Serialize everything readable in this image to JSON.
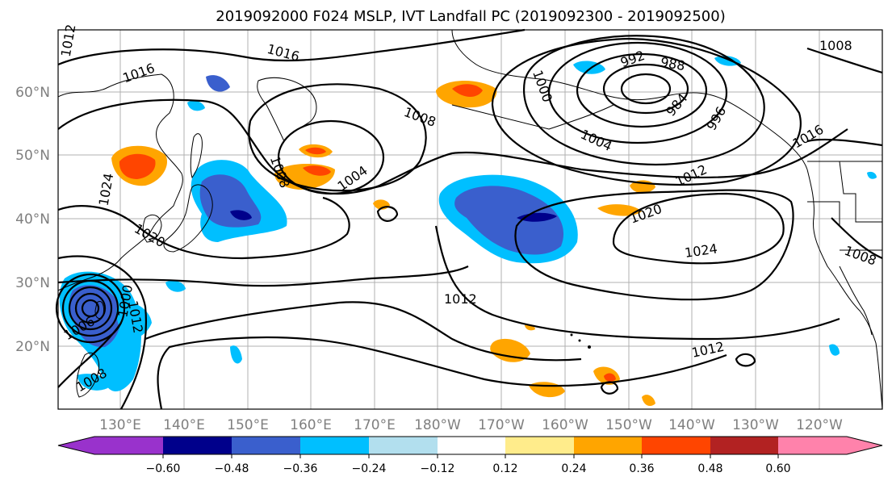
{
  "title": "2019092000 F024 MSLP, IVT Landfall PC (2019092300 - 2019092500)",
  "lat_labels": [
    "60°N",
    "50°N",
    "40°N",
    "30°N",
    "20°N"
  ],
  "lon_labels": [
    "130°E",
    "140°E",
    "150°E",
    "160°E",
    "170°E",
    "180°W",
    "170°W",
    "160°W",
    "150°W",
    "140°W",
    "130°W",
    "120°W"
  ],
  "colorbar": {
    "ticks": [
      "−0.60",
      "−0.48",
      "−0.36",
      "−0.24",
      "−0.12",
      "0.12",
      "0.24",
      "0.36",
      "0.48",
      "0.60"
    ],
    "colors": [
      "#9932cc",
      "#00008b",
      "#3a5fcd",
      "#00bfff",
      "#b2dfee",
      "#ffffff",
      "#ffec8b",
      "#ffa500",
      "#ff4500",
      "#b22222",
      "#ff82ab"
    ]
  },
  "contour_labels": [
    "1016",
    "1016",
    "1012",
    "1024",
    "1020",
    "1008",
    "1004",
    "1000",
    "1008",
    "992",
    "988",
    "984",
    "996",
    "1004",
    "1012",
    "1020",
    "1024",
    "1012",
    "1012",
    "1016",
    "1008",
    "1008",
    "1006",
    "1000",
    "1008",
    "1012"
  ],
  "ivt_colors": {
    "neg_light": "#00bfff",
    "neg_mid": "#3a5fcd",
    "neg_dark": "#00008b",
    "pos_light": "#ffa500",
    "pos_mid": "#ff4500",
    "pos_pale": "#ffec8b"
  }
}
